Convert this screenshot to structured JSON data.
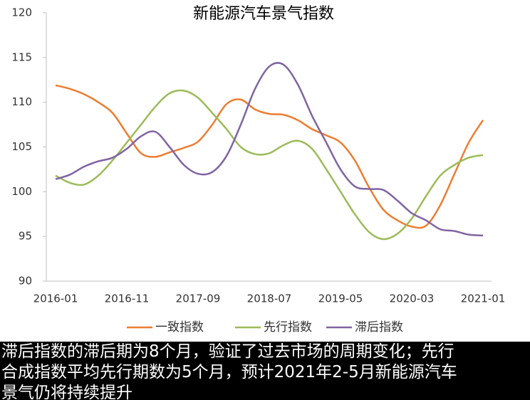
{
  "chart_data": {
    "type": "line",
    "title": "新能源汽车景气指数",
    "categories": [
      "2016-01",
      null,
      null,
      null,
      null,
      "2016-11",
      null,
      null,
      null,
      null,
      "2017-09",
      null,
      null,
      null,
      null,
      "2018-07",
      null,
      null,
      null,
      null,
      "2019-05",
      null,
      null,
      null,
      null,
      "2020-03",
      null,
      null,
      null,
      null,
      "2021-01"
    ],
    "series": [
      {
        "name": "一致指数",
        "color": "#ED7D31",
        "values": [
          111.9,
          111.5,
          110.9,
          110,
          108.8,
          106.5,
          104.3,
          103.9,
          104.4,
          104.9,
          105.6,
          107.5,
          109.8,
          110.3,
          109.2,
          108.7,
          108.6,
          108,
          107,
          106.3,
          105.5,
          103.5,
          100.5,
          98,
          96.8,
          96.1,
          96.2,
          98.5,
          102,
          105.5,
          108
        ]
      },
      {
        "name": "先行指数",
        "color": "#9BBB59",
        "values": [
          101.8,
          101,
          100.8,
          101.8,
          103.5,
          105.5,
          107.5,
          109.5,
          111,
          111.3,
          110.5,
          108.8,
          107,
          105,
          104.2,
          104.3,
          105.2,
          105.7,
          104.8,
          102.5,
          100,
          97.5,
          95.5,
          94.7,
          95.3,
          97,
          99.5,
          101.8,
          103,
          103.8,
          104.1
        ]
      },
      {
        "name": "滞后指数",
        "color": "#8064A2",
        "values": [
          101.4,
          101.9,
          102.8,
          103.4,
          103.8,
          104.8,
          106.2,
          106.7,
          105,
          103,
          102,
          102.2,
          104,
          107.5,
          111.5,
          114,
          114.2,
          112,
          108.5,
          105.5,
          102.5,
          100.6,
          100.3,
          100.2,
          99,
          97.6,
          96.8,
          95.8,
          95.6,
          95.2,
          95.1
        ]
      }
    ],
    "ylim": [
      90,
      120
    ],
    "yticks": [
      90,
      95,
      100,
      105,
      110,
      115,
      120
    ],
    "legend": "bottom"
  },
  "caption": [
    "滞后指数的滞后期为8个月，验证了过去市场的周期变化；先行",
    "合成指数平均先行期数为5个月，预计2021年2-5月新能源汽车",
    "景气仍将持续提升"
  ]
}
